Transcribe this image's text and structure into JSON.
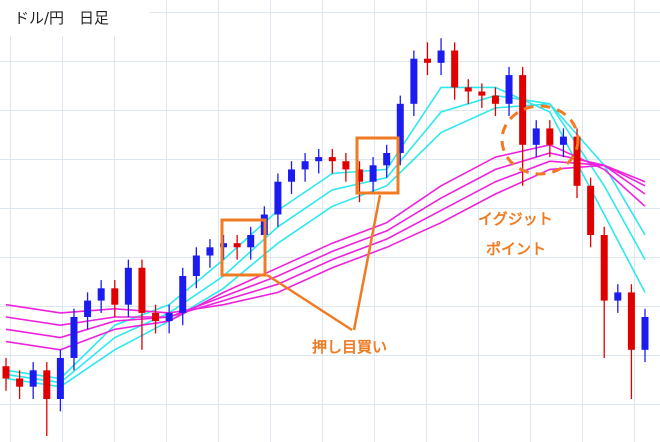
{
  "chart_data": {
    "type": "candlestick",
    "title": "ドル/円　日足",
    "open": [
      18,
      15,
      13,
      17,
      10,
      20,
      30,
      34,
      37,
      33,
      42,
      31,
      29,
      31,
      40,
      45,
      47,
      48,
      47,
      50,
      55,
      63,
      66,
      68,
      69,
      68,
      66,
      63,
      67,
      70,
      82,
      93,
      92,
      95,
      86,
      85,
      84,
      82,
      89,
      72,
      76,
      72,
      74,
      62,
      50,
      34,
      36,
      22
    ],
    "high": [
      20,
      17,
      19,
      19,
      22,
      32,
      36,
      39,
      39,
      44,
      44,
      33,
      33,
      42,
      47,
      49,
      50,
      50,
      52,
      57,
      65,
      68,
      70,
      71,
      71,
      70,
      68,
      69,
      72,
      84,
      95,
      97,
      98,
      97,
      88,
      87,
      86,
      91,
      91,
      78,
      78,
      76,
      76,
      64,
      52,
      38,
      38,
      32
    ],
    "low": [
      12,
      10,
      10,
      1,
      7,
      17,
      27,
      31,
      30,
      30,
      22,
      26,
      26,
      28,
      37,
      42,
      44,
      44,
      44,
      47,
      52,
      60,
      63,
      65,
      65,
      63,
      58,
      60,
      64,
      67,
      79,
      89,
      89,
      83,
      82,
      81,
      79,
      79,
      62,
      69,
      69,
      69,
      59,
      47,
      20,
      31,
      10,
      19
    ],
    "close": [
      15,
      13,
      17,
      10,
      20,
      30,
      34,
      37,
      33,
      42,
      31,
      29,
      31,
      40,
      45,
      47,
      48,
      47,
      50,
      55,
      63,
      66,
      68,
      69,
      68,
      66,
      63,
      67,
      70,
      82,
      93,
      92,
      95,
      86,
      85,
      84,
      82,
      89,
      72,
      76,
      72,
      74,
      62,
      50,
      34,
      36,
      22,
      30
    ],
    "up_color": "#1c1cf0",
    "down_color": "#e00000",
    "xlim": [
      0,
      47
    ],
    "ylim": [
      0,
      100
    ],
    "ma_x": [
      0,
      4,
      8,
      12,
      16,
      20,
      24,
      28,
      32,
      36,
      40,
      44,
      47
    ],
    "series": [
      {
        "color": "#2ee8f0",
        "values": [
          17,
          15,
          28,
          33,
          44,
          56,
          65,
          66,
          86,
          86,
          80,
          55,
          36
        ]
      },
      {
        "color": "#2ee8f0",
        "values": [
          16,
          14,
          25,
          31,
          40,
          52,
          61,
          64,
          80,
          84,
          82,
          62,
          44
        ]
      },
      {
        "color": "#2ee8f0",
        "values": [
          15,
          13,
          22,
          29,
          37,
          48,
          57,
          62,
          75,
          81,
          82,
          67,
          50
        ]
      },
      {
        "color": "#ee22dd",
        "values": [
          24,
          22,
          27,
          29,
          36,
          42,
          48,
          53,
          62,
          69,
          72,
          66,
          57
        ]
      },
      {
        "color": "#ee22dd",
        "values": [
          27,
          25,
          29,
          30,
          35,
          40,
          46,
          51,
          59,
          66,
          70,
          67,
          60
        ]
      },
      {
        "color": "#ee22dd",
        "values": [
          30,
          28,
          30,
          30,
          34,
          38,
          44,
          49,
          56,
          63,
          68,
          67,
          62
        ]
      },
      {
        "color": "#ee22dd",
        "values": [
          33,
          31,
          32,
          31,
          33,
          36,
          42,
          47,
          53,
          60,
          66,
          67,
          63
        ]
      }
    ],
    "annotations": [
      "押し目買い",
      "イグジット",
      "ポイント"
    ]
  }
}
